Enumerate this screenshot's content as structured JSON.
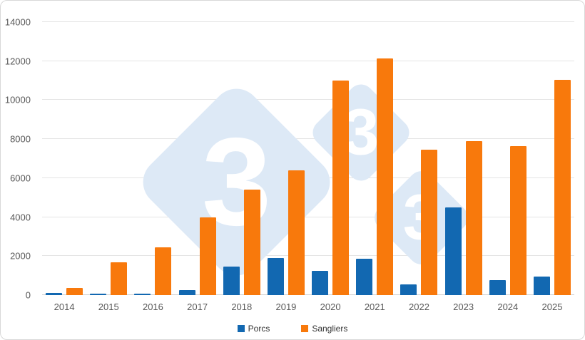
{
  "chart_data": {
    "type": "bar",
    "title": "",
    "xlabel": "",
    "ylabel": "",
    "categories": [
      "2014",
      "2015",
      "2016",
      "2017",
      "2018",
      "2019",
      "2020",
      "2021",
      "2022",
      "2023",
      "2024",
      "2025"
    ],
    "series": [
      {
        "name": "Porcs",
        "color": "#1268b1",
        "values": [
          100,
          60,
          80,
          270,
          1450,
          1900,
          1250,
          1870,
          550,
          4500,
          780,
          950
        ]
      },
      {
        "name": "Sangliers",
        "color": "#f8790c",
        "values": [
          350,
          1700,
          2450,
          4000,
          5400,
          6400,
          11000,
          12150,
          7450,
          7900,
          7650,
          11050
        ]
      }
    ],
    "ylim": [
      0,
      14000
    ],
    "yticks": [
      0,
      2000,
      4000,
      6000,
      8000,
      10000,
      12000,
      14000
    ],
    "grid": true,
    "legend_position": "bottom"
  },
  "watermark": {
    "glyph": "3"
  }
}
